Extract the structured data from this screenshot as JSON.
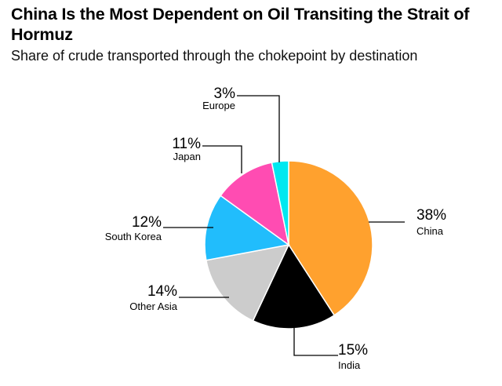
{
  "chart_data": {
    "type": "pie",
    "title": "China Is the Most Dependent on Oil Transiting the Strait of Hormuz",
    "subtitle": "Share of crude transported through the chokepoint by destination",
    "slices": [
      {
        "label": "China",
        "value": 38,
        "value_label": "38%",
        "color": "#FFA12E"
      },
      {
        "label": "India",
        "value": 15,
        "value_label": "15%",
        "color": "#000000"
      },
      {
        "label": "Other Asia",
        "value": 14,
        "value_label": "14%",
        "color": "#CCCCCC"
      },
      {
        "label": "South Korea",
        "value": 12,
        "value_label": "12%",
        "color": "#21BDFC"
      },
      {
        "label": "Japan",
        "value": 11,
        "value_label": "11%",
        "color": "#FF4CB2"
      },
      {
        "label": "Europe",
        "value": 3,
        "value_label": "3%",
        "color": "#00E8F0"
      }
    ],
    "start": "top",
    "direction": "clockwise"
  }
}
